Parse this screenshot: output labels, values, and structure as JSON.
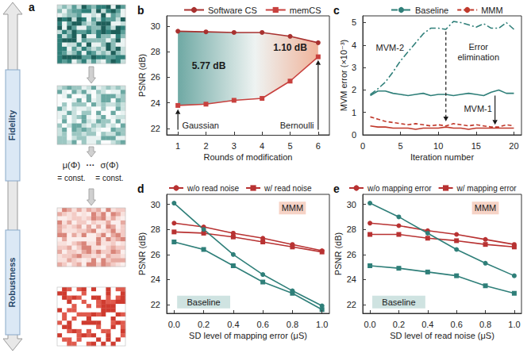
{
  "diagram": {
    "panel": "a",
    "labels": [
      "Fidelity",
      "Robustness"
    ],
    "constraints": [
      {
        "expr": "μ(Φ)",
        "rel": "= const."
      },
      {
        "expr": "σ(Φ)",
        "rel": "= const."
      }
    ],
    "ellipsis": "···"
  },
  "chart_data": [
    {
      "panel": "b",
      "type": "line",
      "xlabel": "Rounds of modification",
      "ylabel": "PSNR (dB)",
      "x": [
        1,
        2,
        3,
        4,
        5,
        6
      ],
      "xlim": [
        0.6,
        6.4
      ],
      "xticks": [
        1,
        2,
        3,
        4,
        5,
        6
      ],
      "ylim": [
        21.5,
        30.8
      ],
      "yticks": [
        22,
        24,
        26,
        28,
        30
      ],
      "grid": false,
      "legend": "top",
      "series": [
        {
          "name": "Software CS",
          "color": "#a8312f",
          "marker": "circle",
          "line_style": "solid",
          "values": [
            29.6,
            29.55,
            29.5,
            29.5,
            29.2,
            28.7
          ]
        },
        {
          "name": "memCS",
          "color": "#c8413e",
          "marker": "square",
          "line_style": "solid",
          "values": [
            23.8,
            23.9,
            24.2,
            24.35,
            25.7,
            27.6
          ]
        }
      ],
      "annotations": [
        "5.77 dB",
        "1.10 dB",
        "Gaussian",
        "Bernoulli"
      ]
    },
    {
      "panel": "c",
      "type": "line",
      "xlabel": "Iteration number",
      "ylabel": "MVM error (×10⁻³)",
      "x": [
        1,
        2,
        3,
        4,
        5,
        6,
        7,
        8,
        9,
        10,
        11,
        12,
        13,
        14,
        15,
        16,
        17,
        18,
        19,
        20
      ],
      "xlim": [
        0,
        21
      ],
      "xticks": [
        0,
        5,
        10,
        15,
        20
      ],
      "ylim": [
        0,
        5.3
      ],
      "yticks": [
        0,
        1,
        2,
        3,
        4,
        5
      ],
      "grid": false,
      "legend": "top",
      "series": [
        {
          "name": "Baseline",
          "color": "#2f7f79",
          "marker": "none",
          "line_style": "dashdot",
          "values": [
            1.8,
            2.05,
            2.35,
            2.8,
            3.3,
            3.7,
            4.1,
            4.5,
            4.75,
            4.75,
            4.7,
            5.05,
            5.0,
            4.9,
            4.8,
            4.95,
            4.75,
            4.75,
            5.0,
            4.7
          ]
        },
        {
          "name": "MMM",
          "color": "#c0392b",
          "marker": "none",
          "line_style": "dashed",
          "values": [
            0.8,
            0.7,
            0.6,
            0.55,
            0.5,
            0.45,
            0.5,
            0.45,
            0.4,
            0.45,
            0.4,
            0.5,
            0.45,
            0.4,
            0.45,
            0.4,
            0.35,
            0.35,
            0.45,
            0.4
          ]
        },
        {
          "name": "Baseline",
          "color": "#2f7f79",
          "marker": "none",
          "line_style": "solid",
          "values": [
            1.75,
            1.95,
            1.95,
            1.85,
            1.8,
            1.75,
            1.8,
            1.85,
            1.75,
            1.8,
            1.8,
            1.75,
            1.8,
            1.85,
            1.8,
            1.75,
            1.9,
            2.0,
            1.85,
            1.85
          ]
        },
        {
          "name": "MMM",
          "color": "#c0392b",
          "marker": "none",
          "line_style": "solid",
          "values": [
            0.4,
            0.35,
            0.35,
            0.3,
            0.3,
            0.3,
            0.25,
            0.3,
            0.3,
            0.3,
            0.35,
            0.3,
            0.3,
            0.25,
            0.3,
            0.3,
            0.3,
            0.3,
            0.3,
            0.3
          ]
        }
      ],
      "annotations": [
        "MVM-2",
        "Error elimination",
        "MVM-1"
      ]
    },
    {
      "panel": "d",
      "type": "line",
      "xlabel": "SD level of mapping error (μS)",
      "ylabel": "PSNR (dB)",
      "x": [
        0,
        0.2,
        0.4,
        0.6,
        0.8,
        1.0
      ],
      "xlim": [
        -0.05,
        1.05
      ],
      "xticks": [
        {
          "value": 0,
          "label": "0.0"
        },
        0.2,
        0.4,
        0.6,
        0.8,
        {
          "value": 1,
          "label": "1.0"
        }
      ],
      "ylim": [
        21.3,
        30.8
      ],
      "yticks": [
        22,
        24,
        26,
        28,
        30
      ],
      "grid": false,
      "legend": "top",
      "series": [
        {
          "name": "w/o read noise",
          "color": "#b83232",
          "marker": "circle",
          "line_style": "solid",
          "values": [
            28.5,
            28.2,
            27.7,
            27.3,
            26.8,
            26.3
          ]
        },
        {
          "name": "w/ read noise",
          "color": "#b83232",
          "marker": "square",
          "line_style": "solid",
          "values": [
            27.8,
            27.7,
            27.4,
            27.0,
            26.6,
            26.2
          ]
        },
        {
          "name": "w/o read noise",
          "color": "#2f7f79",
          "marker": "circle",
          "line_style": "solid",
          "values": [
            30.1,
            28.0,
            26.0,
            24.4,
            23.1,
            21.9
          ]
        },
        {
          "name": "w/ read noise",
          "color": "#2f7f79",
          "marker": "square",
          "line_style": "solid",
          "values": [
            27.0,
            26.4,
            25.1,
            23.8,
            22.9,
            21.6
          ]
        }
      ],
      "annotations": [
        "MMM",
        "Baseline"
      ]
    },
    {
      "panel": "e",
      "type": "line",
      "xlabel": "SD level of read noise (μS)",
      "ylabel": "PSNR (dB)",
      "x": [
        0,
        0.2,
        0.4,
        0.6,
        0.8,
        1.0
      ],
      "xlim": [
        -0.05,
        1.05
      ],
      "xticks": [
        {
          "value": 0,
          "label": "0.0"
        },
        0.2,
        0.4,
        0.6,
        0.8,
        {
          "value": 1,
          "label": "1.0"
        }
      ],
      "ylim": [
        21.3,
        30.8
      ],
      "yticks": [
        22,
        24,
        26,
        28,
        30
      ],
      "grid": false,
      "legend": "top",
      "series": [
        {
          "name": "w/o mapping error",
          "color": "#b83232",
          "marker": "circle",
          "line_style": "solid",
          "values": [
            28.5,
            28.3,
            27.9,
            27.6,
            27.2,
            26.8
          ]
        },
        {
          "name": "w/ mapping error",
          "color": "#b83232",
          "marker": "square",
          "line_style": "solid",
          "values": [
            27.6,
            27.6,
            27.3,
            27.1,
            26.8,
            26.6
          ]
        },
        {
          "name": "w/o mapping error",
          "color": "#2f7f79",
          "marker": "circle",
          "line_style": "solid",
          "values": [
            30.1,
            29.0,
            27.7,
            26.4,
            25.3,
            24.3
          ]
        },
        {
          "name": "w/ mapping error",
          "color": "#2f7f79",
          "marker": "square",
          "line_style": "solid",
          "values": [
            25.1,
            24.9,
            24.6,
            24.3,
            23.5,
            22.9
          ]
        }
      ],
      "annotations": [
        "MMM",
        "Baseline"
      ]
    }
  ]
}
